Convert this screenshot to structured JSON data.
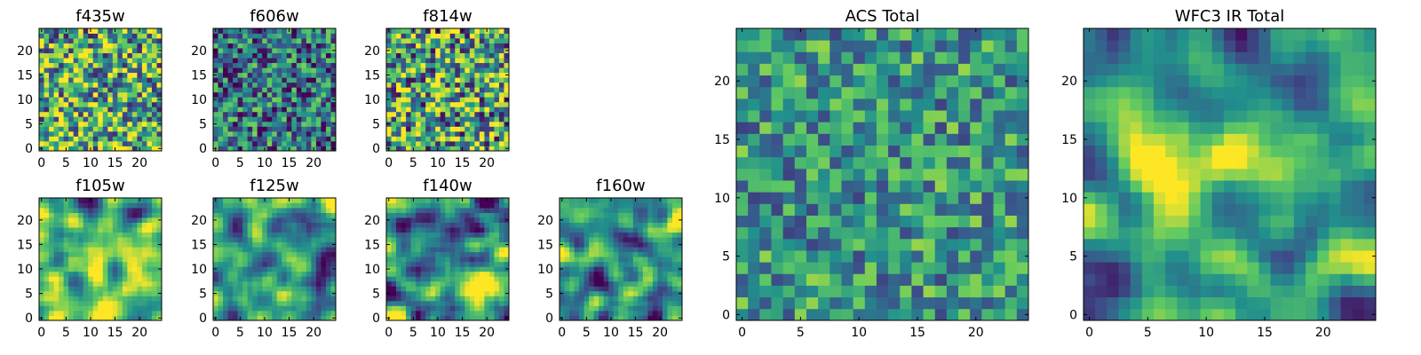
{
  "colors": {
    "colormap": "viridis",
    "colormap_stops": [
      "#440154",
      "#3b528b",
      "#21918c",
      "#5ec962",
      "#fde725"
    ],
    "frame": "#000000",
    "background": "#ffffff"
  },
  "chart_data": [
    {
      "type": "heatmap",
      "title": "f435w",
      "grid_size": 25,
      "colormap": "viridis",
      "xticks": [
        0,
        5,
        10,
        15,
        20
      ],
      "yticks": [
        0,
        5,
        10,
        15,
        20
      ],
      "xlim": [
        -0.5,
        24.5
      ],
      "ylim": [
        -0.5,
        24.5
      ],
      "value_range": [
        0,
        1
      ],
      "seed": 435,
      "smoothness": 0,
      "mean": 0.6,
      "spread": 0.5,
      "xlabel": "",
      "ylabel": ""
    },
    {
      "type": "heatmap",
      "title": "f606w",
      "grid_size": 25,
      "colormap": "viridis",
      "xticks": [
        0,
        5,
        10,
        15,
        20
      ],
      "yticks": [
        0,
        5,
        10,
        15,
        20
      ],
      "xlim": [
        -0.5,
        24.5
      ],
      "ylim": [
        -0.5,
        24.5
      ],
      "value_range": [
        0,
        1
      ],
      "seed": 606,
      "smoothness": 0,
      "mean": 0.38,
      "spread": 0.42,
      "xlabel": "",
      "ylabel": ""
    },
    {
      "type": "heatmap",
      "title": "f814w",
      "grid_size": 25,
      "colormap": "viridis",
      "xticks": [
        0,
        5,
        10,
        15,
        20
      ],
      "yticks": [
        0,
        5,
        10,
        15,
        20
      ],
      "xlim": [
        -0.5,
        24.5
      ],
      "ylim": [
        -0.5,
        24.5
      ],
      "value_range": [
        0,
        1
      ],
      "seed": 814,
      "smoothness": 0,
      "mean": 0.58,
      "spread": 0.55,
      "xlabel": "",
      "ylabel": ""
    },
    {
      "type": "heatmap",
      "title": "f105w",
      "grid_size": 25,
      "colormap": "viridis",
      "xticks": [
        0,
        5,
        10,
        15,
        20
      ],
      "yticks": [
        0,
        5,
        10,
        15,
        20
      ],
      "xlim": [
        -0.5,
        24.5
      ],
      "ylim": [
        -0.5,
        24.5
      ],
      "value_range": [
        0,
        1
      ],
      "seed": 105,
      "smoothness": 2,
      "mean": 0.62,
      "spread": 0.6,
      "xlabel": "",
      "ylabel": ""
    },
    {
      "type": "heatmap",
      "title": "f125w",
      "grid_size": 25,
      "colormap": "viridis",
      "xticks": [
        0,
        5,
        10,
        15,
        20
      ],
      "yticks": [
        0,
        5,
        10,
        15,
        20
      ],
      "xlim": [
        -0.5,
        24.5
      ],
      "ylim": [
        -0.5,
        24.5
      ],
      "value_range": [
        0,
        1
      ],
      "seed": 125,
      "smoothness": 2,
      "mean": 0.6,
      "spread": 0.6,
      "xlabel": "",
      "ylabel": ""
    },
    {
      "type": "heatmap",
      "title": "f140w",
      "grid_size": 25,
      "colormap": "viridis",
      "xticks": [
        0,
        5,
        10,
        15,
        20
      ],
      "yticks": [
        0,
        5,
        10,
        15,
        20
      ],
      "xlim": [
        -0.5,
        24.5
      ],
      "ylim": [
        -0.5,
        24.5
      ],
      "value_range": [
        0,
        1
      ],
      "seed": 140,
      "smoothness": 2,
      "mean": 0.52,
      "spread": 0.75,
      "xlabel": "",
      "ylabel": ""
    },
    {
      "type": "heatmap",
      "title": "f160w",
      "grid_size": 25,
      "colormap": "viridis",
      "xticks": [
        0,
        5,
        10,
        15,
        20
      ],
      "yticks": [
        0,
        5,
        10,
        15,
        20
      ],
      "xlim": [
        -0.5,
        24.5
      ],
      "ylim": [
        -0.5,
        24.5
      ],
      "value_range": [
        0,
        1
      ],
      "seed": 160,
      "smoothness": 2,
      "mean": 0.62,
      "spread": 0.7,
      "xlabel": "",
      "ylabel": ""
    },
    {
      "type": "heatmap",
      "title": "ACS Total",
      "grid_size": 25,
      "colormap": "viridis",
      "xticks": [
        0,
        5,
        10,
        15,
        20
      ],
      "yticks": [
        0,
        5,
        10,
        15,
        20
      ],
      "xlim": [
        -0.5,
        24.5
      ],
      "ylim": [
        -0.5,
        24.5
      ],
      "value_range": [
        0,
        1
      ],
      "seed": 700,
      "smoothness": 0,
      "mean": 0.52,
      "spread": 0.32,
      "xlabel": "",
      "ylabel": ""
    },
    {
      "type": "heatmap",
      "title": "WFC3 IR Total",
      "grid_size": 25,
      "colormap": "viridis",
      "xticks": [
        0,
        5,
        10,
        15,
        20
      ],
      "yticks": [
        0,
        5,
        10,
        15,
        20
      ],
      "xlim": [
        -0.5,
        24.5
      ],
      "ylim": [
        -0.5,
        24.5
      ],
      "value_range": [
        0,
        1
      ],
      "seed": 900,
      "smoothness": 2,
      "mean": 0.6,
      "spread": 0.55,
      "xlabel": "",
      "ylabel": ""
    }
  ]
}
